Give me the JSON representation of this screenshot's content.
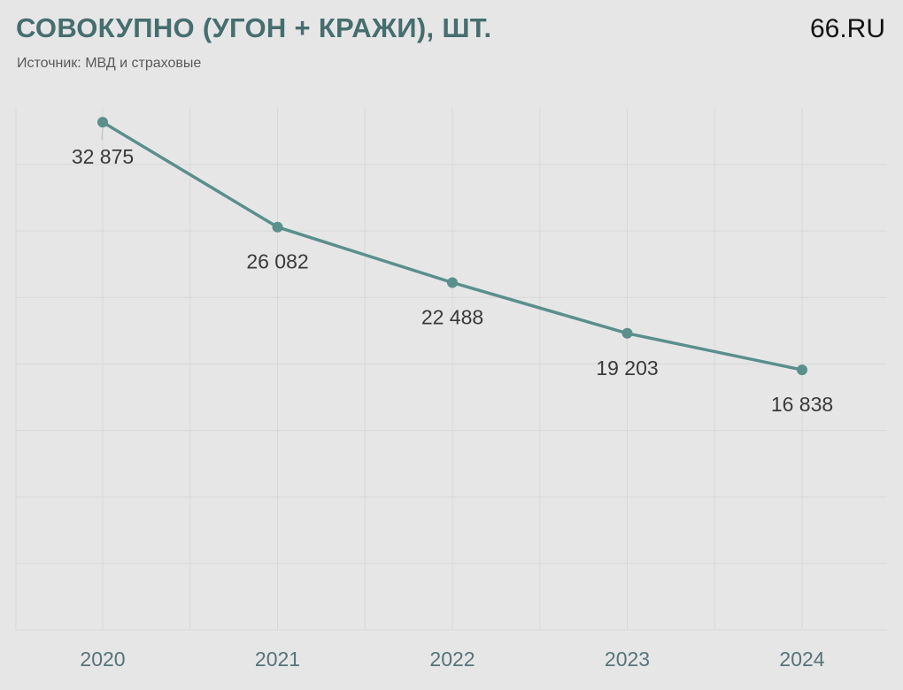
{
  "header": {
    "title": "СОВОКУПНО (УГОН + КРАЖИ), ШТ.",
    "subtitle": "Источник: МВД и страховые",
    "brand": "66.RU"
  },
  "colors": {
    "background": "#e6e6e6",
    "line": "#5a8f8c",
    "title": "#466e6e",
    "grid": "#d8d8d8"
  },
  "chart_data": {
    "type": "line",
    "title": "СОВОКУПНО (УГОН + КРАЖИ), ШТ.",
    "subtitle": "Источник: МВД и страховые",
    "xlabel": "",
    "ylabel": "",
    "categories": [
      "2020",
      "2021",
      "2022",
      "2023",
      "2024"
    ],
    "values": [
      32875,
      26082,
      22488,
      19203,
      16838
    ],
    "value_labels": [
      "32 875",
      "26 082",
      "22 488",
      "19 203",
      "16 838"
    ],
    "ylim": [
      0,
      33800
    ],
    "grid": true,
    "legend": "none"
  }
}
